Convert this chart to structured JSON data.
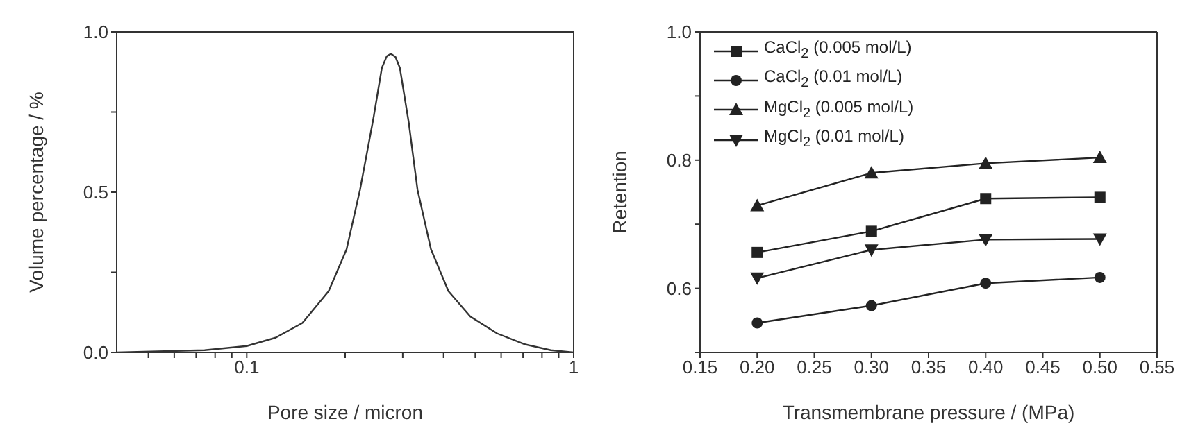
{
  "chart_data": [
    {
      "type": "line",
      "xlabel": "Pore size / micron",
      "ylabel": "Volume percentage / %",
      "log": "x",
      "xlim": [
        0.04,
        1
      ],
      "xticks": [
        {
          "value": 0.05,
          "label": null
        },
        {
          "value": 0.06,
          "label": null
        },
        {
          "value": 0.07,
          "label": null
        },
        {
          "value": 0.08,
          "label": null
        },
        {
          "value": 0.09,
          "label": null
        },
        0.1,
        {
          "value": 0.2,
          "label": null
        },
        {
          "value": 0.3,
          "label": null
        },
        {
          "value": 0.4,
          "label": null
        },
        {
          "value": 0.5,
          "label": null
        },
        {
          "value": 0.6,
          "label": null
        },
        {
          "value": 0.7,
          "label": null
        },
        {
          "value": 0.8,
          "label": null
        },
        {
          "value": 0.9,
          "label": null
        },
        1
      ],
      "ylim": [
        0,
        1
      ],
      "yticks": [
        {
          "value": 0,
          "label": "0.0"
        },
        {
          "value": 0.25,
          "label": null
        },
        0.5,
        {
          "value": 0.75,
          "label": null
        },
        {
          "value": 1,
          "label": "1.0"
        }
      ],
      "marker": "none",
      "line_style": "solid",
      "x": [
        0.04,
        0.0743,
        0.1,
        0.1225,
        0.148,
        0.178,
        0.202,
        0.222,
        0.244,
        0.259,
        0.268,
        0.276,
        0.285,
        0.294,
        0.313,
        0.333,
        0.366,
        0.414,
        0.483,
        0.584,
        0.705,
        0.851,
        1.0
      ],
      "series": [
        {
          "color": "#333333",
          "values": [
            0,
            0.007,
            0.02,
            0.046,
            0.092,
            0.191,
            0.322,
            0.507,
            0.73,
            0.888,
            0.924,
            0.932,
            0.922,
            0.888,
            0.717,
            0.507,
            0.322,
            0.191,
            0.112,
            0.059,
            0.026,
            0.007,
            0
          ]
        }
      ]
    },
    {
      "type": "line",
      "xlabel": "Transmembrane pressure / (MPa)",
      "ylabel": "Retention",
      "legend": "top left",
      "line_style": "solid",
      "xlim": [
        0.15,
        0.55
      ],
      "xticks": [
        0.15,
        {
          "value": 0.2,
          "label": "0.20"
        },
        0.25,
        {
          "value": 0.3,
          "label": "0.30"
        },
        0.35,
        {
          "value": 0.4,
          "label": "0.40"
        },
        0.45,
        {
          "value": 0.5,
          "label": "0.50"
        },
        0.55
      ],
      "ylim": [
        0.5,
        1
      ],
      "yticks": [
        {
          "value": 0.5,
          "label": null
        },
        0.6,
        {
          "value": 0.7,
          "label": null
        },
        0.8,
        {
          "value": 0.9,
          "label": null
        },
        {
          "value": 1,
          "label": "1.0"
        }
      ],
      "x": [
        0.2,
        0.3,
        0.4,
        0.5
      ],
      "series": [
        {
          "name": "CaCl$_{2}$ (0.005 mol/L)",
          "color": "#222222",
          "marker": "square",
          "values": [
            0.656,
            0.689,
            0.74,
            0.742
          ]
        },
        {
          "name": "CaCl$_{2}$ (0.01 mol/L)",
          "color": "#222222",
          "marker": "circle",
          "values": [
            0.546,
            0.573,
            0.608,
            0.617
          ]
        },
        {
          "name": "MgCl$_{2}$ (0.005 mol/L)",
          "color": "#222222",
          "marker": "triangle",
          "values": [
            0.729,
            0.78,
            0.795,
            0.804
          ]
        },
        {
          "name": "MgCl$_{2}$ (0.01 mol/L)",
          "color": "#222222",
          "marker": "triangle-down",
          "values": [
            0.616,
            0.66,
            0.676,
            0.677
          ]
        }
      ]
    }
  ]
}
